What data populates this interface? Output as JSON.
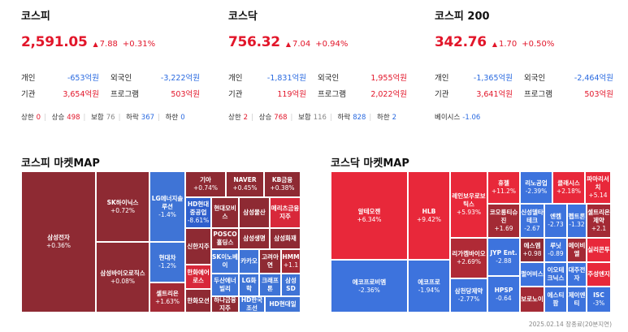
{
  "kospi": {
    "name": "코스피",
    "value": "2,591.05",
    "change": "7.88",
    "pct": "+0.31%",
    "rows": [
      {
        "l1": "개인",
        "v1": "-653억원",
        "c1": "blue",
        "l2": "외국인",
        "v2": "-3,222억원",
        "c2": "blue"
      },
      {
        "l1": "기관",
        "v1": "3,654억원",
        "c1": "red",
        "l2": "프로그램",
        "v2": "503억원",
        "c2": "red"
      }
    ],
    "stats": [
      {
        "label": "상한",
        "value": "0",
        "color": "red"
      },
      {
        "label": "상승",
        "value": "498",
        "color": "red"
      },
      {
        "label": "보합",
        "value": "76",
        "color": "gray"
      },
      {
        "label": "하락",
        "value": "367",
        "color": "blue"
      },
      {
        "label": "하한",
        "value": "0",
        "color": "blue"
      }
    ]
  },
  "kosdaq": {
    "name": "코스닥",
    "value": "756.32",
    "change": "7.04",
    "pct": "+0.94%",
    "rows": [
      {
        "l1": "개인",
        "v1": "-1,831억원",
        "c1": "blue",
        "l2": "외국인",
        "v2": "1,955억원",
        "c2": "red"
      },
      {
        "l1": "기관",
        "v1": "119억원",
        "c1": "red",
        "l2": "프로그램",
        "v2": "2,022억원",
        "c2": "red"
      }
    ],
    "stats": [
      {
        "label": "상한",
        "value": "2",
        "color": "red"
      },
      {
        "label": "상승",
        "value": "768",
        "color": "red"
      },
      {
        "label": "보합",
        "value": "116",
        "color": "gray"
      },
      {
        "label": "하락",
        "value": "828",
        "color": "blue"
      },
      {
        "label": "하한",
        "value": "2",
        "color": "blue"
      }
    ]
  },
  "kospi200": {
    "name": "코스피 200",
    "value": "342.76",
    "change": "1.70",
    "pct": "+0.50%",
    "rows": [
      {
        "l1": "개인",
        "v1": "-1,365억원",
        "c1": "blue",
        "l2": "외국인",
        "v2": "-2,464억원",
        "c2": "blue"
      },
      {
        "l1": "기관",
        "v1": "3,641억원",
        "c1": "red",
        "l2": "프로그램",
        "v2": "503억원",
        "c2": "red"
      }
    ],
    "stats": [
      {
        "label": "베이시스",
        "value": "-1.06",
        "color": "blue"
      }
    ]
  },
  "kospi_map": {
    "title": "코스피 마켓MAP",
    "cells": [
      {
        "name": "삼성전자",
        "chg": "+0.36%",
        "color": "#8e2a33"
      },
      {
        "name": "SK하이닉스",
        "chg": "+0.72%",
        "color": "#8e2a33"
      },
      {
        "name": "삼성바이오로직스",
        "chg": "+0.08%",
        "color": "#8e2a33"
      },
      {
        "name": "LG에너지솔루션",
        "chg": "-1.4%",
        "color": "#3f74d6"
      },
      {
        "name": "현대차",
        "chg": "-1.2%",
        "color": "#3f74d6"
      },
      {
        "name": "셀트리온",
        "chg": "+1.63%",
        "color": "#a32a35"
      },
      {
        "name": "기아",
        "chg": "+0.74%",
        "color": "#8e2a33"
      },
      {
        "name": "NAVER",
        "chg": "+0.45%",
        "color": "#8e2a33"
      },
      {
        "name": "KB금융",
        "chg": "+0.38%",
        "color": "#8e2a33"
      },
      {
        "name": "HD현대중공업",
        "chg": "-8.61%",
        "color": "#2f5fcc"
      },
      {
        "name": "현대모비스",
        "chg": "",
        "color": "#8e2a33"
      },
      {
        "name": "삼성물산",
        "chg": "",
        "color": "#8e2a33"
      },
      {
        "name": "메리츠금융지주",
        "chg": "",
        "color": "#d8283a"
      },
      {
        "name": "POSCO홀딩스",
        "chg": "",
        "color": "#8e2a33"
      },
      {
        "name": "삼성생명",
        "chg": "",
        "color": "#8e2a33"
      },
      {
        "name": "삼성화재",
        "chg": "",
        "color": "#8e2a33"
      },
      {
        "name": "신한지주",
        "chg": "",
        "color": "#8e2a33"
      },
      {
        "name": "SK이노베이",
        "chg": "",
        "color": "#3f74d6"
      },
      {
        "name": "카카오",
        "chg": "",
        "color": "#3f74d6"
      },
      {
        "name": "고려아연",
        "chg": "",
        "color": "#8e2a33"
      },
      {
        "name": "HMM",
        "chg": "+1.1",
        "color": "#a32a35"
      },
      {
        "name": "한화에어로스",
        "chg": "",
        "color": "#d8283a"
      },
      {
        "name": "두산에너빌리",
        "chg": "",
        "color": "#3f74d6"
      },
      {
        "name": "LG화학",
        "chg": "",
        "color": "#3f74d6"
      },
      {
        "name": "크래프톤",
        "chg": "",
        "color": "#3f74d6"
      },
      {
        "name": "삼성SD",
        "chg": "",
        "color": "#3f74d6"
      },
      {
        "name": "한화오션",
        "chg": "",
        "color": "#8e2a33"
      },
      {
        "name": "하나금융지주",
        "chg": "",
        "color": "#8e2a33"
      },
      {
        "name": "HD한국조선",
        "chg": "",
        "color": "#3f74d6"
      },
      {
        "name": "HD현대일",
        "chg": "",
        "color": "#3f74d6"
      }
    ]
  },
  "kosdaq_map": {
    "title": "코스닥 마켓MAP",
    "cells": [
      {
        "name": "알테오젠",
        "chg": "+6.34%",
        "color": "#e8283a"
      },
      {
        "name": "에코프로비엠",
        "chg": "-2.36%",
        "color": "#3d73dd"
      },
      {
        "name": "HLB",
        "chg": "+9.42%",
        "color": "#e8283a"
      },
      {
        "name": "에코프로",
        "chg": "-1.94%",
        "color": "#3d73dd"
      },
      {
        "name": "레인보우로보틱스",
        "chg": "+5.93%",
        "color": "#e8283a"
      },
      {
        "name": "리가켐바이오",
        "chg": "+2.69%",
        "color": "#b02a36"
      },
      {
        "name": "삼천당제약",
        "chg": "-2.77%",
        "color": "#3d73dd"
      },
      {
        "name": "휴젤",
        "chg": "+11.2%",
        "color": "#e8283a"
      },
      {
        "name": "코오롱티슈진",
        "chg": "+1.69",
        "color": "#a32a35"
      },
      {
        "name": "JYP Ent.",
        "chg": "-2.88",
        "color": "#3d73dd"
      },
      {
        "name": "HPSP",
        "chg": "-0.64",
        "color": "#3d73dd"
      },
      {
        "name": "리노공업",
        "chg": "-2.39%",
        "color": "#3d73dd"
      },
      {
        "name": "클래시스",
        "chg": "+2.18%",
        "color": "#e8283a"
      },
      {
        "name": "파마리서치",
        "chg": "+5.14",
        "color": "#e8283a"
      },
      {
        "name": "신성델타테크",
        "chg": "-2.67",
        "color": "#3d73dd"
      },
      {
        "name": "엔켐",
        "chg": "-2.73",
        "color": "#3d73dd"
      },
      {
        "name": "펩트론",
        "chg": "-1.32",
        "color": "#3d73dd"
      },
      {
        "name": "셀트리온제약",
        "chg": "+2.1",
        "color": "#a32a35"
      },
      {
        "name": "에스엠",
        "chg": "+0.98",
        "color": "#8e2a33"
      },
      {
        "name": "루닛",
        "chg": "-0.89",
        "color": "#3d73dd"
      },
      {
        "name": "메이비엘",
        "chg": "",
        "color": "#a32a35"
      },
      {
        "name": "실리콘투",
        "chg": "",
        "color": "#e8283a"
      },
      {
        "name": "펄어비스",
        "chg": "",
        "color": "#3d73dd"
      },
      {
        "name": "이오테크닉스",
        "chg": "",
        "color": "#3d73dd"
      },
      {
        "name": "대주전자",
        "chg": "",
        "color": "#3d73dd"
      },
      {
        "name": "주성엔지",
        "chg": "",
        "color": "#e8283a"
      },
      {
        "name": "보로노이",
        "chg": "",
        "color": "#a32a35"
      },
      {
        "name": "에스티팜",
        "chg": "",
        "color": "#3d73dd"
      },
      {
        "name": "제이엔티",
        "chg": "",
        "color": "#3d73dd"
      },
      {
        "name": "ISC",
        "chg": "-3%",
        "color": "#3d73dd"
      }
    ]
  },
  "footer": "2025.02.14 장종료(20분지연)"
}
